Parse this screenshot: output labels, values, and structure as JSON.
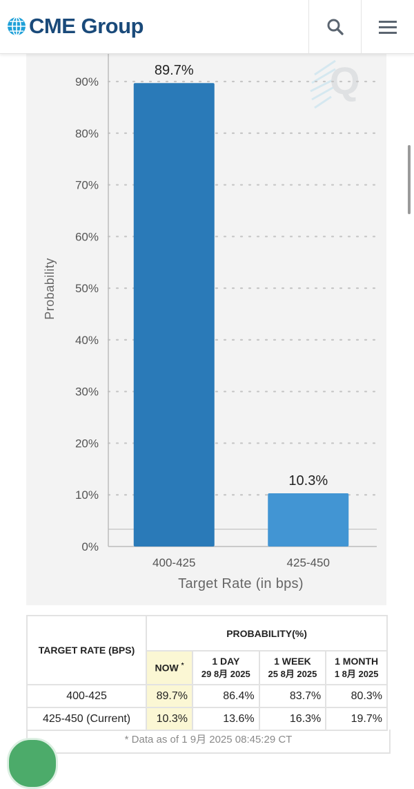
{
  "header": {
    "brand": "CME Group",
    "icons": [
      "globe-logo-icon",
      "search-icon",
      "menu-icon"
    ]
  },
  "chart_data": {
    "type": "bar",
    "categories": [
      "400-425",
      "425-450"
    ],
    "values": [
      89.7,
      10.3
    ],
    "value_labels": [
      "89.7%",
      "10.3%"
    ],
    "colors": [
      "#2a7ab8",
      "#4295d3"
    ],
    "xlabel": "Target Rate (in bps)",
    "ylabel": "Probability",
    "ylim": [
      0,
      100
    ],
    "yticks": [
      0,
      10,
      20,
      30,
      40,
      50,
      60,
      70,
      80,
      90
    ],
    "ytick_labels": [
      "0%",
      "10%",
      "20%",
      "30%",
      "40%",
      "50%",
      "60%",
      "70%",
      "80%",
      "90%"
    ],
    "grid": true
  },
  "table": {
    "col_header": "TARGET RATE (BPS)",
    "prob_header": "PROBABILITY(%)",
    "sub_headers": [
      {
        "label": "NOW",
        "mark": "*",
        "date": ""
      },
      {
        "label": "1 DAY",
        "date": "29 8月 2025"
      },
      {
        "label": "1 WEEK",
        "date": "25 8月 2025"
      },
      {
        "label": "1 MONTH",
        "date": "1 8月 2025"
      }
    ],
    "rows": [
      {
        "rate": "400-425",
        "now": "89.7%",
        "day": "86.4%",
        "week": "83.7%",
        "month": "80.3%"
      },
      {
        "rate": "425-450 (Current)",
        "now": "10.3%",
        "day": "13.6%",
        "week": "16.3%",
        "month": "19.7%"
      }
    ],
    "footnote": "* Data as of 1 9月 2025 08:45:29 CT"
  }
}
